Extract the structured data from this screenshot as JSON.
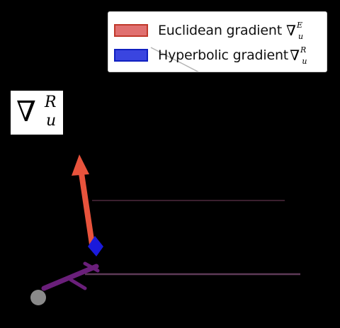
{
  "legend": {
    "items": [
      {
        "label": "Euclidean gradient",
        "symbol": "∇",
        "sup": "E",
        "sub": "u",
        "swatch_fill": "#e07070",
        "swatch_edge": "#c0392b"
      },
      {
        "label": "Hyperbolic gradient",
        "symbol": "∇",
        "sup": "R",
        "sub": "u",
        "swatch_fill": "#3a45e0",
        "swatch_edge": "#1020c0"
      }
    ]
  },
  "corner_label": {
    "symbol": "∇",
    "sup": "R",
    "sub": "u"
  },
  "colors": {
    "background": "#000000",
    "euclidean": "#e8533c",
    "hyperbolic": "#1a1adb",
    "path": "#6a1f7a",
    "guide_line": "#5e3a57",
    "origin_point": "#8a8a8a"
  },
  "icons": {
    "euclidean_arrow": "arrow-up-icon",
    "hyperbolic_arrow": "arrow-icon",
    "origin": "point-icon"
  }
}
